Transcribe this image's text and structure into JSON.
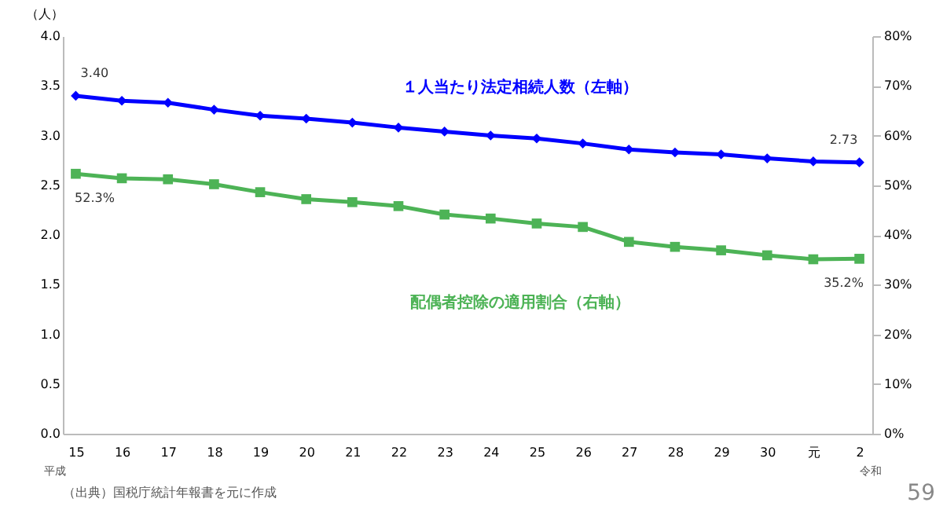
{
  "chart_data": {
    "type": "line",
    "categories": [
      "15",
      "16",
      "17",
      "18",
      "19",
      "20",
      "21",
      "22",
      "23",
      "24",
      "25",
      "26",
      "27",
      "28",
      "29",
      "30",
      "元",
      "2"
    ],
    "ylabel": "（人）",
    "series": [
      {
        "name": "１人当たり法定相続人数（左軸）",
        "color": "#0000ff",
        "marker": "diamond",
        "values": [
          3.4,
          3.35,
          3.33,
          3.26,
          3.2,
          3.17,
          3.13,
          3.08,
          3.04,
          3.0,
          2.97,
          2.92,
          2.86,
          2.83,
          2.81,
          2.77,
          2.74,
          2.73
        ],
        "value_labels": [
          "3.40",
          null,
          null,
          null,
          null,
          null,
          null,
          null,
          null,
          null,
          null,
          null,
          null,
          null,
          null,
          null,
          null,
          "2.73"
        ]
      },
      {
        "name": "配偶者控除の適用割合（右軸）",
        "color": "#4db356",
        "marker": "square",
        "axis": "y2",
        "values": [
          52.3,
          51.4,
          51.2,
          50.2,
          48.6,
          47.2,
          46.6,
          45.8,
          44.1,
          43.3,
          42.3,
          41.6,
          38.6,
          37.6,
          36.9,
          35.9,
          35.1,
          35.2
        ],
        "value_labels": [
          "52.3%",
          null,
          null,
          null,
          null,
          null,
          null,
          null,
          null,
          null,
          null,
          null,
          null,
          null,
          null,
          null,
          null,
          "35.2%"
        ]
      }
    ],
    "ylim": [
      0,
      4
    ],
    "yticks": [
      {
        "value": 0,
        "label": "0.0"
      },
      {
        "value": 0.5,
        "label": "0.5"
      },
      {
        "value": 1,
        "label": "1.0"
      },
      {
        "value": 1.5,
        "label": "1.5"
      },
      {
        "value": 2,
        "label": "2.0"
      },
      {
        "value": 2.5,
        "label": "2.5"
      },
      {
        "value": 3,
        "label": "3.0"
      },
      {
        "value": 3.5,
        "label": "3.5"
      },
      {
        "value": 4,
        "label": "4.0"
      }
    ],
    "y2lim": [
      0,
      80
    ],
    "y2ticks": [
      {
        "value": 0,
        "label": "0%"
      },
      {
        "value": 10,
        "label": "10%"
      },
      {
        "value": 20,
        "label": "20%"
      },
      {
        "value": 30,
        "label": "30%"
      },
      {
        "value": 40,
        "label": "40%"
      },
      {
        "value": 50,
        "label": "50%"
      },
      {
        "value": 60,
        "label": "60%"
      },
      {
        "value": 70,
        "label": "70%"
      },
      {
        "value": 80,
        "label": "80%"
      }
    ],
    "line_style": "solid",
    "annotations": [
      "平成",
      "令和",
      "（出典）国税庁統計年報書を元に作成",
      "59"
    ]
  }
}
